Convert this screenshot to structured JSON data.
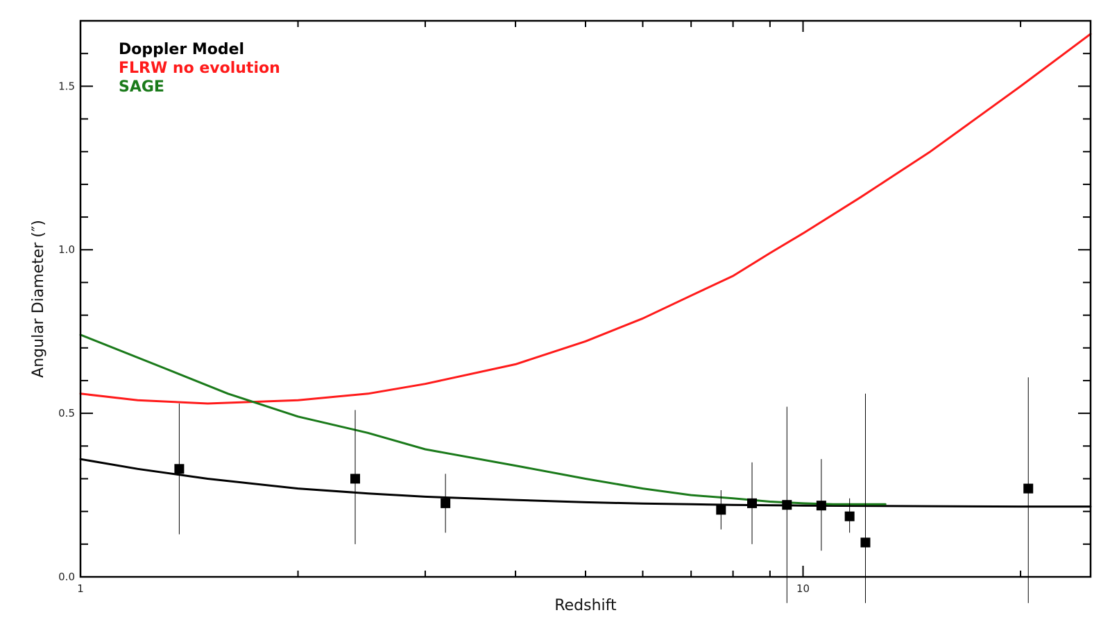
{
  "chart_data": {
    "type": "line",
    "xlabel": "Redshift",
    "ylabel": "Angular Diameter (″)",
    "xscale": "log",
    "xlim": [
      1,
      25
    ],
    "ylim": [
      0,
      1.7
    ],
    "x_tick_labels": [
      {
        "value": 1,
        "label": "1"
      },
      {
        "value": 10,
        "label": "10"
      }
    ],
    "x_minor_ticks": [
      2,
      3,
      4,
      5,
      6,
      7,
      8,
      9,
      20
    ],
    "y_tick_labels": [
      {
        "value": 0.0,
        "label": "0.0"
      },
      {
        "value": 0.5,
        "label": "0.5"
      },
      {
        "value": 1.0,
        "label": "1.0"
      },
      {
        "value": 1.5,
        "label": "1.5"
      }
    ],
    "y_minor_step": 0.1,
    "legend": {
      "placement": "top-left",
      "entries": [
        {
          "label": "Doppler Model",
          "color": "#000000"
        },
        {
          "label": "FLRW no evolution",
          "color": "#ff1a1a"
        },
        {
          "label": "SAGE",
          "color": "#1a7a1a"
        }
      ]
    },
    "series": [
      {
        "name": "Doppler Model",
        "color": "#000000",
        "x": [
          1.0,
          1.2,
          1.5,
          2.0,
          2.5,
          3.0,
          4.0,
          5.0,
          6.0,
          7.0,
          8.0,
          9.0,
          10.0,
          12.0,
          15.0,
          20.0,
          25.0
        ],
        "y": [
          0.36,
          0.33,
          0.3,
          0.27,
          0.255,
          0.245,
          0.235,
          0.228,
          0.224,
          0.222,
          0.22,
          0.219,
          0.218,
          0.217,
          0.216,
          0.215,
          0.215
        ]
      },
      {
        "name": "FLRW no evolution",
        "color": "#ff1a1a",
        "x": [
          1.0,
          1.2,
          1.5,
          2.0,
          2.5,
          3.0,
          4.0,
          5.0,
          6.0,
          7.0,
          8.0,
          9.0,
          10.0,
          12.0,
          15.0,
          20.0,
          25.0
        ],
        "y": [
          0.56,
          0.54,
          0.53,
          0.54,
          0.56,
          0.59,
          0.65,
          0.72,
          0.79,
          0.86,
          0.92,
          0.99,
          1.05,
          1.16,
          1.3,
          1.5,
          1.66
        ]
      },
      {
        "name": "SAGE",
        "color": "#1a7a1a",
        "x": [
          1.0,
          1.3,
          1.6,
          2.0,
          2.5,
          3.0,
          4.0,
          5.0,
          6.0,
          7.0,
          8.0,
          9.0,
          10.0,
          11.0,
          12.0,
          13.0
        ],
        "y": [
          0.74,
          0.64,
          0.56,
          0.49,
          0.44,
          0.39,
          0.34,
          0.3,
          0.27,
          0.25,
          0.24,
          0.23,
          0.225,
          0.222,
          0.222,
          0.222
        ]
      }
    ],
    "points": {
      "name": "Data",
      "color": "#000000",
      "x": [
        1.37,
        2.4,
        3.2,
        7.7,
        8.5,
        9.5,
        10.6,
        11.6,
        12.2,
        20.5
      ],
      "y": [
        0.33,
        0.3,
        0.225,
        0.205,
        0.225,
        0.22,
        0.218,
        0.185,
        0.105,
        0.27
      ],
      "y_low": [
        0.13,
        0.1,
        0.135,
        0.145,
        0.1,
        -0.08,
        0.08,
        0.135,
        -0.08,
        -0.08
      ],
      "y_high": [
        0.53,
        0.51,
        0.315,
        0.265,
        0.35,
        0.52,
        0.36,
        0.24,
        0.56,
        0.61
      ]
    }
  }
}
